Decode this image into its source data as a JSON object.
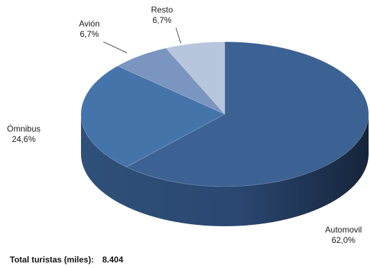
{
  "chart_data": {
    "type": "pie",
    "style": "3d",
    "title": "",
    "slices": [
      {
        "label": "Automovil",
        "value": 62.0,
        "display": "62,0%",
        "color": "#3b6293"
      },
      {
        "label": "Ómnibus",
        "value": 24.6,
        "display": "24,6%",
        "color": "#4574ab"
      },
      {
        "label": "Avión",
        "value": 6.7,
        "display": "6,7%",
        "color": "#7a95c0"
      },
      {
        "label": "Resto",
        "value": 6.7,
        "display": "6,7%",
        "color": "#b7c5dd"
      }
    ],
    "legend": "none"
  },
  "footer": {
    "total_label": "Total turistas (miles):",
    "total_value": "8.404"
  }
}
